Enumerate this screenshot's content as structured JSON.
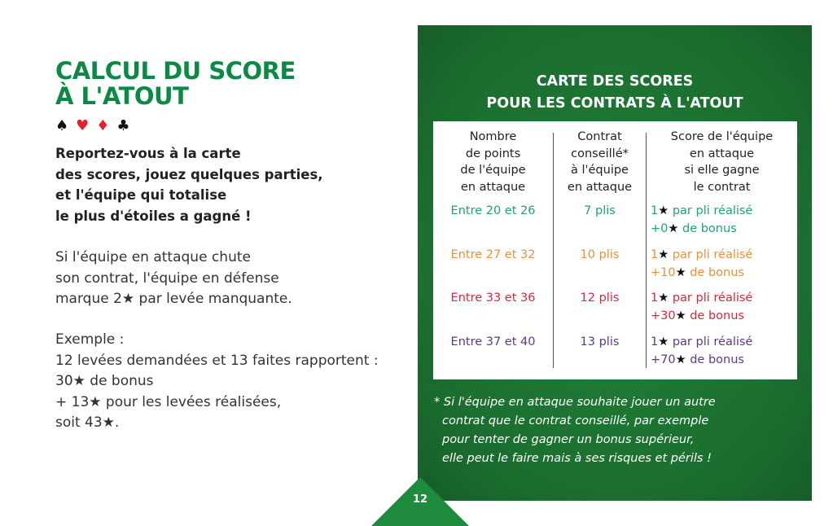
{
  "left": {
    "title_line1": "CALCUL DU SCORE",
    "title_line2": "À L'ATOUT",
    "suits": [
      "♠",
      "♥",
      "♦",
      "♣"
    ],
    "intro": [
      "Reportez-vous à la carte",
      "des scores, jouez quelques parties,",
      "et l'équipe qui totalise",
      "le plus d'étoiles a gagné !"
    ],
    "para1": [
      "Si l'équipe en attaque chute",
      "son contrat, l'équipe en défense",
      "marque 2★ par levée manquante."
    ],
    "para2": [
      "Exemple :",
      "12 levées demandées et 13 faites rapportent :",
      "30★ de bonus",
      "+ 13★ pour les levées réalisées,",
      "soit 43★."
    ]
  },
  "panel": {
    "title_line1": "CARTE DES SCORES",
    "title_line2": "POUR LES CONTRATS À L'ATOUT",
    "headers": [
      [
        "Nombre",
        "de points",
        "de l'équipe",
        "en attaque"
      ],
      [
        "Contrat",
        "conseillé*",
        "à l'équipe",
        "en attaque"
      ],
      [
        "Score de l'équipe",
        "en attaque",
        "si elle gagne",
        "le contrat"
      ]
    ],
    "rows": [
      {
        "points": "Entre 20 et 26",
        "contract": "7 plis",
        "score1_num": "1",
        "score1_text": "par pli réalisé",
        "score2_num": "+0",
        "score2_text": "de bonus",
        "color": "#1ea37a"
      },
      {
        "points": "Entre 27 et 32",
        "contract": "10 plis",
        "score1_num": "1",
        "score1_text": "par pli réalisé",
        "score2_num": "+10",
        "score2_text": "de bonus",
        "color": "#e8913a"
      },
      {
        "points": "Entre 33 et 36",
        "contract": "12 plis",
        "score1_num": "1",
        "score1_text": "par pli réalisé",
        "score2_num": "+30",
        "score2_text": "de bonus",
        "color": "#d9263a"
      },
      {
        "points": "Entre 37 et 40",
        "contract": "13 plis",
        "score1_num": "1",
        "score1_text": "par pli réalisé",
        "score2_num": "+70",
        "score2_text": "de bonus",
        "color": "#5b3a8c"
      }
    ],
    "star": "★",
    "note": [
      "* Si l'équipe en attaque souhaite jouer un autre",
      "contrat que le contrat conseillé,  par exemple",
      "pour tenter de gagner un bonus  supérieur,",
      "elle peut le faire mais à ses risques et périls !"
    ]
  },
  "page_number": "12",
  "colors": {
    "title": "#0b8a46",
    "panel": "#1b6e2f"
  }
}
